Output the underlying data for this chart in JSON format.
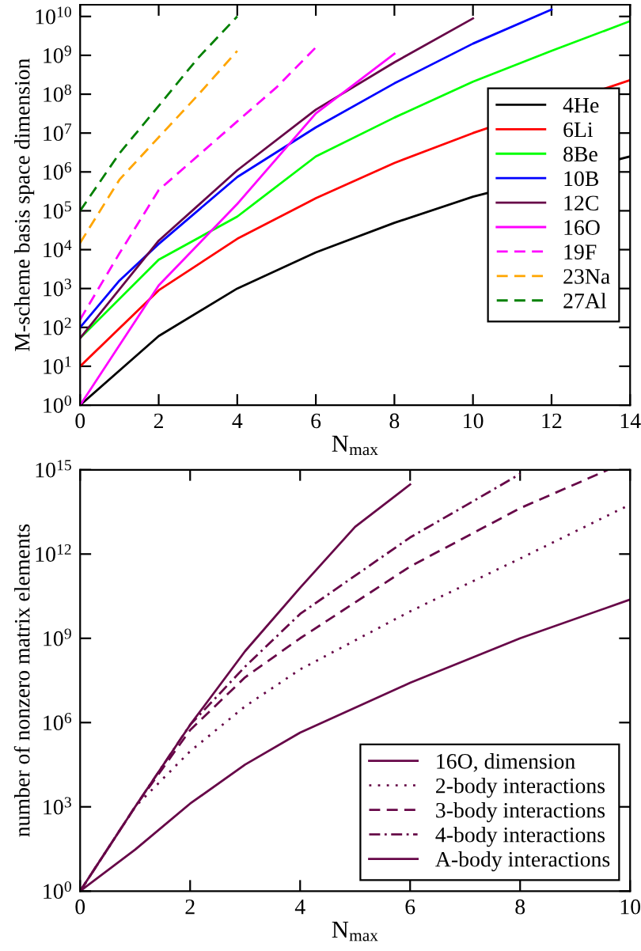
{
  "chart_data": [
    {
      "type": "line",
      "xlabel": "N$_{max}$",
      "ylabel": "M-scheme basis space dimension",
      "log": "y",
      "xlim": [
        0,
        14
      ],
      "xticks": [
        0,
        2,
        4,
        6,
        8,
        10,
        12,
        14
      ],
      "ylim": [
        1,
        20000000000
      ],
      "yticks": [
        {
          "value": 1,
          "label": "10$^{0}$"
        },
        {
          "value": 10,
          "label": "10$^{1}$"
        },
        {
          "value": 100,
          "label": "10$^{2}$"
        },
        {
          "value": 1000,
          "label": "10$^{3}$"
        },
        {
          "value": 10000,
          "label": "10$^{4}$"
        },
        {
          "value": 100000,
          "label": "10$^{5}$"
        },
        {
          "value": 1000000,
          "label": "10$^{6}$"
        },
        {
          "value": 10000000,
          "label": "10$^{7}$"
        },
        {
          "value": 100000000,
          "label": "10$^{8}$"
        },
        {
          "value": 1000000000,
          "label": "10$^{9}$"
        },
        {
          "value": 10000000000,
          "label": "10$^{10}$"
        }
      ],
      "legend": "right",
      "grid": false,
      "series": [
        {
          "name": "4He",
          "color": "#000000",
          "line_style": "solid",
          "x": [
            0,
            2,
            4,
            6,
            8,
            10,
            14
          ],
          "values": [
            1,
            60,
            1000,
            8500,
            49000,
            230000,
            2500000
          ]
        },
        {
          "name": "6Li",
          "color": "#ff0000",
          "line_style": "solid",
          "x": [
            0,
            2,
            4,
            6,
            8,
            10,
            14
          ],
          "values": [
            10,
            900,
            19000,
            210000,
            1700000,
            10000000,
            230000000
          ]
        },
        {
          "name": "8Be",
          "color": "#00ff00",
          "line_style": "solid",
          "x": [
            0,
            2,
            4,
            6,
            8,
            10,
            12,
            14
          ],
          "values": [
            53,
            5500,
            71000,
            2500000,
            25000000,
            210000000,
            1300000000,
            7600000000
          ]
        },
        {
          "name": "10B",
          "color": "#0000ff",
          "line_style": "solid",
          "x": [
            0,
            1,
            2,
            4,
            6,
            8,
            10,
            12
          ],
          "values": [
            100,
            1600,
            14000,
            740000,
            14000000,
            190000000,
            2000000000,
            15000000000
          ]
        },
        {
          "name": "12C",
          "color": "#670748",
          "line_style": "solid",
          "x": [
            0,
            2,
            4,
            6,
            8,
            10
          ],
          "values": [
            53,
            17000,
            1100000,
            40000000,
            660000000,
            8900000000
          ]
        },
        {
          "name": "16O",
          "color": "#ff00ff",
          "line_style": "solid",
          "x": [
            0,
            2,
            4,
            6,
            8
          ],
          "values": [
            1,
            1200,
            150000,
            32000000,
            1100000000
          ]
        },
        {
          "name": "19F",
          "color": "#ff00ff",
          "line_style": "dashed",
          "x": [
            0,
            1,
            2,
            4,
            5,
            6
          ],
          "values": [
            160,
            8000,
            340000,
            20000000,
            150000000,
            1600000000
          ]
        },
        {
          "name": "23Na",
          "color": "#ffa500",
          "line_style": "dashed",
          "x": [
            0,
            1,
            2,
            3,
            4
          ],
          "values": [
            15000,
            630000,
            7800000,
            95000000,
            1300000000
          ]
        },
        {
          "name": "27Al",
          "color": "#008000",
          "line_style": "dashed",
          "x": [
            0,
            1,
            2,
            3,
            4
          ],
          "values": [
            100000,
            3000000,
            50000000,
            850000000,
            10000000000
          ]
        }
      ]
    },
    {
      "type": "line",
      "xlabel": "N$_{max}$",
      "ylabel": "number of nonzero matrix elements",
      "log": "y",
      "xlim": [
        0,
        10
      ],
      "xticks": [
        0,
        2,
        4,
        6,
        8,
        10
      ],
      "ylim": [
        1,
        1000000000000000
      ],
      "yticks": [
        {
          "value": 1,
          "label": "10$^{0}$"
        },
        {
          "value": 1000,
          "label": "10$^{3}$"
        },
        {
          "value": 1000000,
          "label": "10$^{6}$"
        },
        {
          "value": 1000000000,
          "label": "10$^{9}$"
        },
        {
          "value": 1000000000000,
          "label": "10$^{12}$"
        },
        {
          "value": 1000000000000000,
          "label": "10$^{15}$"
        }
      ],
      "legend": "bottom right",
      "grid": false,
      "series": [
        {
          "name": "16O, dimension",
          "color": "#670748",
          "line_style": "solid",
          "x": [
            0,
            1,
            2,
            3,
            4,
            6,
            8,
            10
          ],
          "values": [
            1,
            30,
            1300,
            32000,
            440000,
            26000000,
            1000000000,
            24000000000
          ]
        },
        {
          "name": "2-body interactions",
          "color": "#670748",
          "line_style": "dotted",
          "x": [
            0,
            1,
            2,
            3,
            4,
            6,
            8,
            10
          ],
          "values": [
            1,
            1000,
            95000,
            3800000,
            78000000,
            9100000000,
            690000000000,
            58000000000000
          ]
        },
        {
          "name": "3-body interactions",
          "color": "#670748",
          "line_style": "dashed",
          "x": [
            0,
            1,
            2,
            3,
            4,
            6,
            8,
            9.6
          ],
          "values": [
            1,
            1000,
            540000,
            41000000,
            1000000000,
            360000000000,
            43000000000000,
            1000000000000000
          ]
        },
        {
          "name": "4-body interactions",
          "color": "#670748",
          "line_style": "dashdot",
          "x": [
            0,
            1,
            2,
            3,
            4,
            6,
            7,
            8
          ],
          "values": [
            1,
            1000,
            830000,
            98000000,
            7400000000,
            3900000000000,
            52000000000000,
            710000000000000
          ]
        },
        {
          "name": "A-body interactions",
          "color": "#670748",
          "line_style": "solid",
          "x": [
            0,
            1,
            2,
            3,
            4,
            5,
            6
          ],
          "values": [
            1,
            1000,
            830000,
            350000000,
            63000000000,
            9300000000000,
            300000000000000
          ]
        }
      ]
    }
  ]
}
